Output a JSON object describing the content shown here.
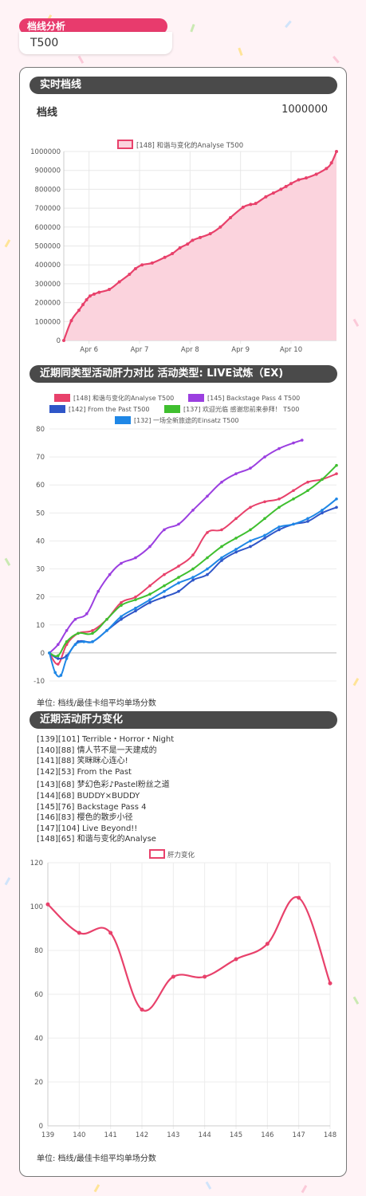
{
  "header": {
    "tag": "档线分析",
    "tier": "T500"
  },
  "sections": {
    "realtime": "实时档线",
    "compare": "近期同类型活动肝力对比  活动类型: LIVE试炼（EX)",
    "trend": "近期活动肝力变化"
  },
  "realtime_row": {
    "label": "档线",
    "value": "1000000"
  },
  "unit_note": "单位: 档线/最佳卡组平均单场分数",
  "events": [
    "[139][101] Terrible・Horror・Night",
    "[140][88] 情人节不是一天建成的",
    "[141][88] 笑眯眯心连心!",
    "[142][53] From the Past",
    "[143][68] 梦幻色彩♪Pastel粉丝之道",
    "[144][68] BUDDY×BUDDY",
    "[145][76] Backstage Pass 4",
    "[146][83] 樱色的散步小径",
    "[147][104] Live Beyond!!",
    "[148][65] 和谐与变化的Analyse"
  ],
  "colors": {
    "accent": "#e83b6d",
    "line1": "#e8416b",
    "fill1": "#fbd3dd",
    "s148": "#e8416b",
    "s145": "#9b3fe0",
    "s142": "#2f56c8",
    "s137": "#3fbf2f",
    "s132": "#1f87e6"
  },
  "chart_data": [
    {
      "type": "area",
      "legend": [
        "[148] 和谐与变化的Analyse  T500"
      ],
      "x_ticks": [
        "Apr 6",
        "Apr 7",
        "Apr 8",
        "Apr 9",
        "Apr 10"
      ],
      "y_ticks": [
        "1000000",
        "900000",
        "800000",
        "700000",
        "600000",
        "500000",
        "400000",
        "300000",
        "200000",
        "100000",
        "0"
      ],
      "ylim": [
        0,
        1000000
      ],
      "xlim": [
        0,
        5.4
      ],
      "tick_pos": [
        0.5,
        1.5,
        2.5,
        3.5,
        4.5
      ],
      "series": [
        {
          "name": "[148] 和谐与变化的Analyse  T500",
          "x": [
            0,
            0.15,
            0.3,
            0.38,
            0.45,
            0.52,
            0.6,
            0.7,
            0.9,
            1.1,
            1.3,
            1.42,
            1.55,
            1.75,
            2.0,
            2.15,
            2.3,
            2.45,
            2.55,
            2.7,
            2.9,
            3.1,
            3.3,
            3.55,
            3.7,
            3.8,
            4.0,
            4.15,
            4.3,
            4.4,
            4.5,
            4.65,
            4.8,
            5.0,
            5.2,
            5.3,
            5.4
          ],
          "y": [
            0,
            105000,
            160000,
            190000,
            215000,
            235000,
            245000,
            255000,
            270000,
            310000,
            350000,
            380000,
            400000,
            410000,
            440000,
            460000,
            490000,
            510000,
            530000,
            545000,
            565000,
            600000,
            650000,
            705000,
            720000,
            725000,
            760000,
            780000,
            800000,
            815000,
            830000,
            850000,
            860000,
            880000,
            910000,
            940000,
            1000000
          ]
        }
      ]
    },
    {
      "type": "line",
      "legend": [
        "[148] 和谐与变化的Analyse  T500",
        "[145] Backstage Pass 4  T500",
        "[142] From the Past  T500",
        "[137] 欢迎光临 感谢您前来参拜！  T500",
        "[132] 一场全新旅途的Einsatz  T500"
      ],
      "y_ticks": [
        "80",
        "70",
        "60",
        "50",
        "40",
        "30",
        "20",
        "10",
        "0",
        "-10"
      ],
      "ylim": [
        -10,
        80
      ],
      "xlim": [
        0,
        100
      ],
      "series": [
        {
          "name": "[148] 和谐与变化的Analyse  T500",
          "x": [
            0,
            3,
            6,
            10,
            15,
            20,
            25,
            30,
            35,
            40,
            45,
            50,
            55,
            60,
            65,
            70,
            75,
            80,
            85,
            90,
            95,
            100
          ],
          "y": [
            0,
            -4,
            3,
            7,
            8,
            12,
            18,
            20,
            24,
            28,
            31,
            35,
            43,
            44,
            48,
            52,
            54,
            55,
            58,
            61,
            62,
            64
          ]
        },
        {
          "name": "[145] Backstage Pass 4  T500",
          "x": [
            0,
            3,
            6,
            9,
            13,
            17,
            21,
            25,
            30,
            35,
            40,
            45,
            50,
            55,
            60,
            65,
            70,
            75,
            80,
            85,
            88
          ],
          "y": [
            0,
            3,
            8,
            12,
            14,
            22,
            28,
            32,
            34,
            38,
            44,
            46,
            51,
            56,
            61,
            64,
            66,
            70,
            73,
            75,
            76
          ]
        },
        {
          "name": "[142] From the Past  T500",
          "x": [
            0,
            3,
            6,
            10,
            15,
            20,
            25,
            30,
            35,
            40,
            45,
            50,
            55,
            60,
            65,
            70,
            75,
            80,
            85,
            90,
            95,
            100
          ],
          "y": [
            0,
            -2,
            -1,
            4,
            4,
            8,
            12,
            15,
            18,
            20,
            22,
            26,
            28,
            33,
            36,
            38,
            41,
            44,
            46,
            47,
            50,
            52
          ]
        },
        {
          "name": "[137] 欢迎光临 感谢您前来参拜！  T500",
          "x": [
            0,
            3,
            6,
            10,
            15,
            20,
            25,
            30,
            35,
            40,
            45,
            50,
            55,
            60,
            65,
            70,
            75,
            80,
            85,
            90,
            95,
            100
          ],
          "y": [
            0,
            -1,
            4,
            7,
            7,
            12,
            17,
            19,
            21,
            24,
            27,
            30,
            34,
            38,
            41,
            44,
            48,
            52,
            55,
            58,
            62,
            67
          ]
        },
        {
          "name": "[132] 一场全新旅途的Einsatz  T500",
          "x": [
            0,
            2,
            4,
            6,
            9,
            12,
            15,
            20,
            25,
            30,
            35,
            40,
            45,
            50,
            55,
            60,
            65,
            70,
            75,
            80,
            85,
            90,
            95,
            100
          ],
          "y": [
            0,
            -7,
            -8,
            -2,
            3,
            4,
            4,
            8,
            13,
            16,
            19,
            22,
            25,
            27,
            30,
            34,
            37,
            40,
            42,
            45,
            46,
            48,
            51,
            55
          ]
        }
      ]
    },
    {
      "type": "line",
      "legend": [
        "肝力变化"
      ],
      "categories": [
        "139",
        "140",
        "141",
        "142",
        "143",
        "144",
        "145",
        "146",
        "147",
        "148"
      ],
      "values": [
        101,
        88,
        88,
        53,
        68,
        68,
        76,
        83,
        104,
        65
      ],
      "y_ticks": [
        "120",
        "100",
        "80",
        "60",
        "40",
        "20",
        "0"
      ],
      "ylim": [
        0,
        120
      ]
    }
  ]
}
